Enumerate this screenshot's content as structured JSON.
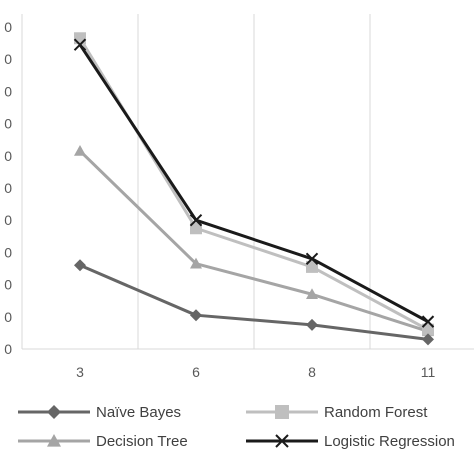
{
  "chart_data": {
    "type": "line",
    "title": "",
    "xlabel": "",
    "ylabel": "",
    "categories": [
      "3",
      "6",
      "8",
      "11"
    ],
    "y_tick_labels": [
      "0",
      "0",
      "0",
      "0",
      "0",
      "0",
      "0",
      "0",
      "0",
      "0",
      "0"
    ],
    "ylim": [
      0,
      10
    ],
    "grid": "vertical",
    "legend_position": "bottom",
    "series": [
      {
        "name": "Naïve Bayes",
        "values": [
          2.6,
          1.05,
          0.75,
          0.3
        ],
        "color": "#666666",
        "marker": "diamond"
      },
      {
        "name": "Random Forest",
        "values": [
          9.65,
          3.75,
          2.55,
          0.6
        ],
        "color": "#bfbfbf",
        "marker": "square"
      },
      {
        "name": "Decision Tree",
        "values": [
          6.15,
          2.65,
          1.7,
          0.55
        ],
        "color": "#a5a5a5",
        "marker": "triangle"
      },
      {
        "name": "Logistic Regression",
        "values": [
          9.45,
          4.0,
          2.8,
          0.85
        ],
        "color": "#1a1a1a",
        "marker": "x"
      }
    ]
  }
}
